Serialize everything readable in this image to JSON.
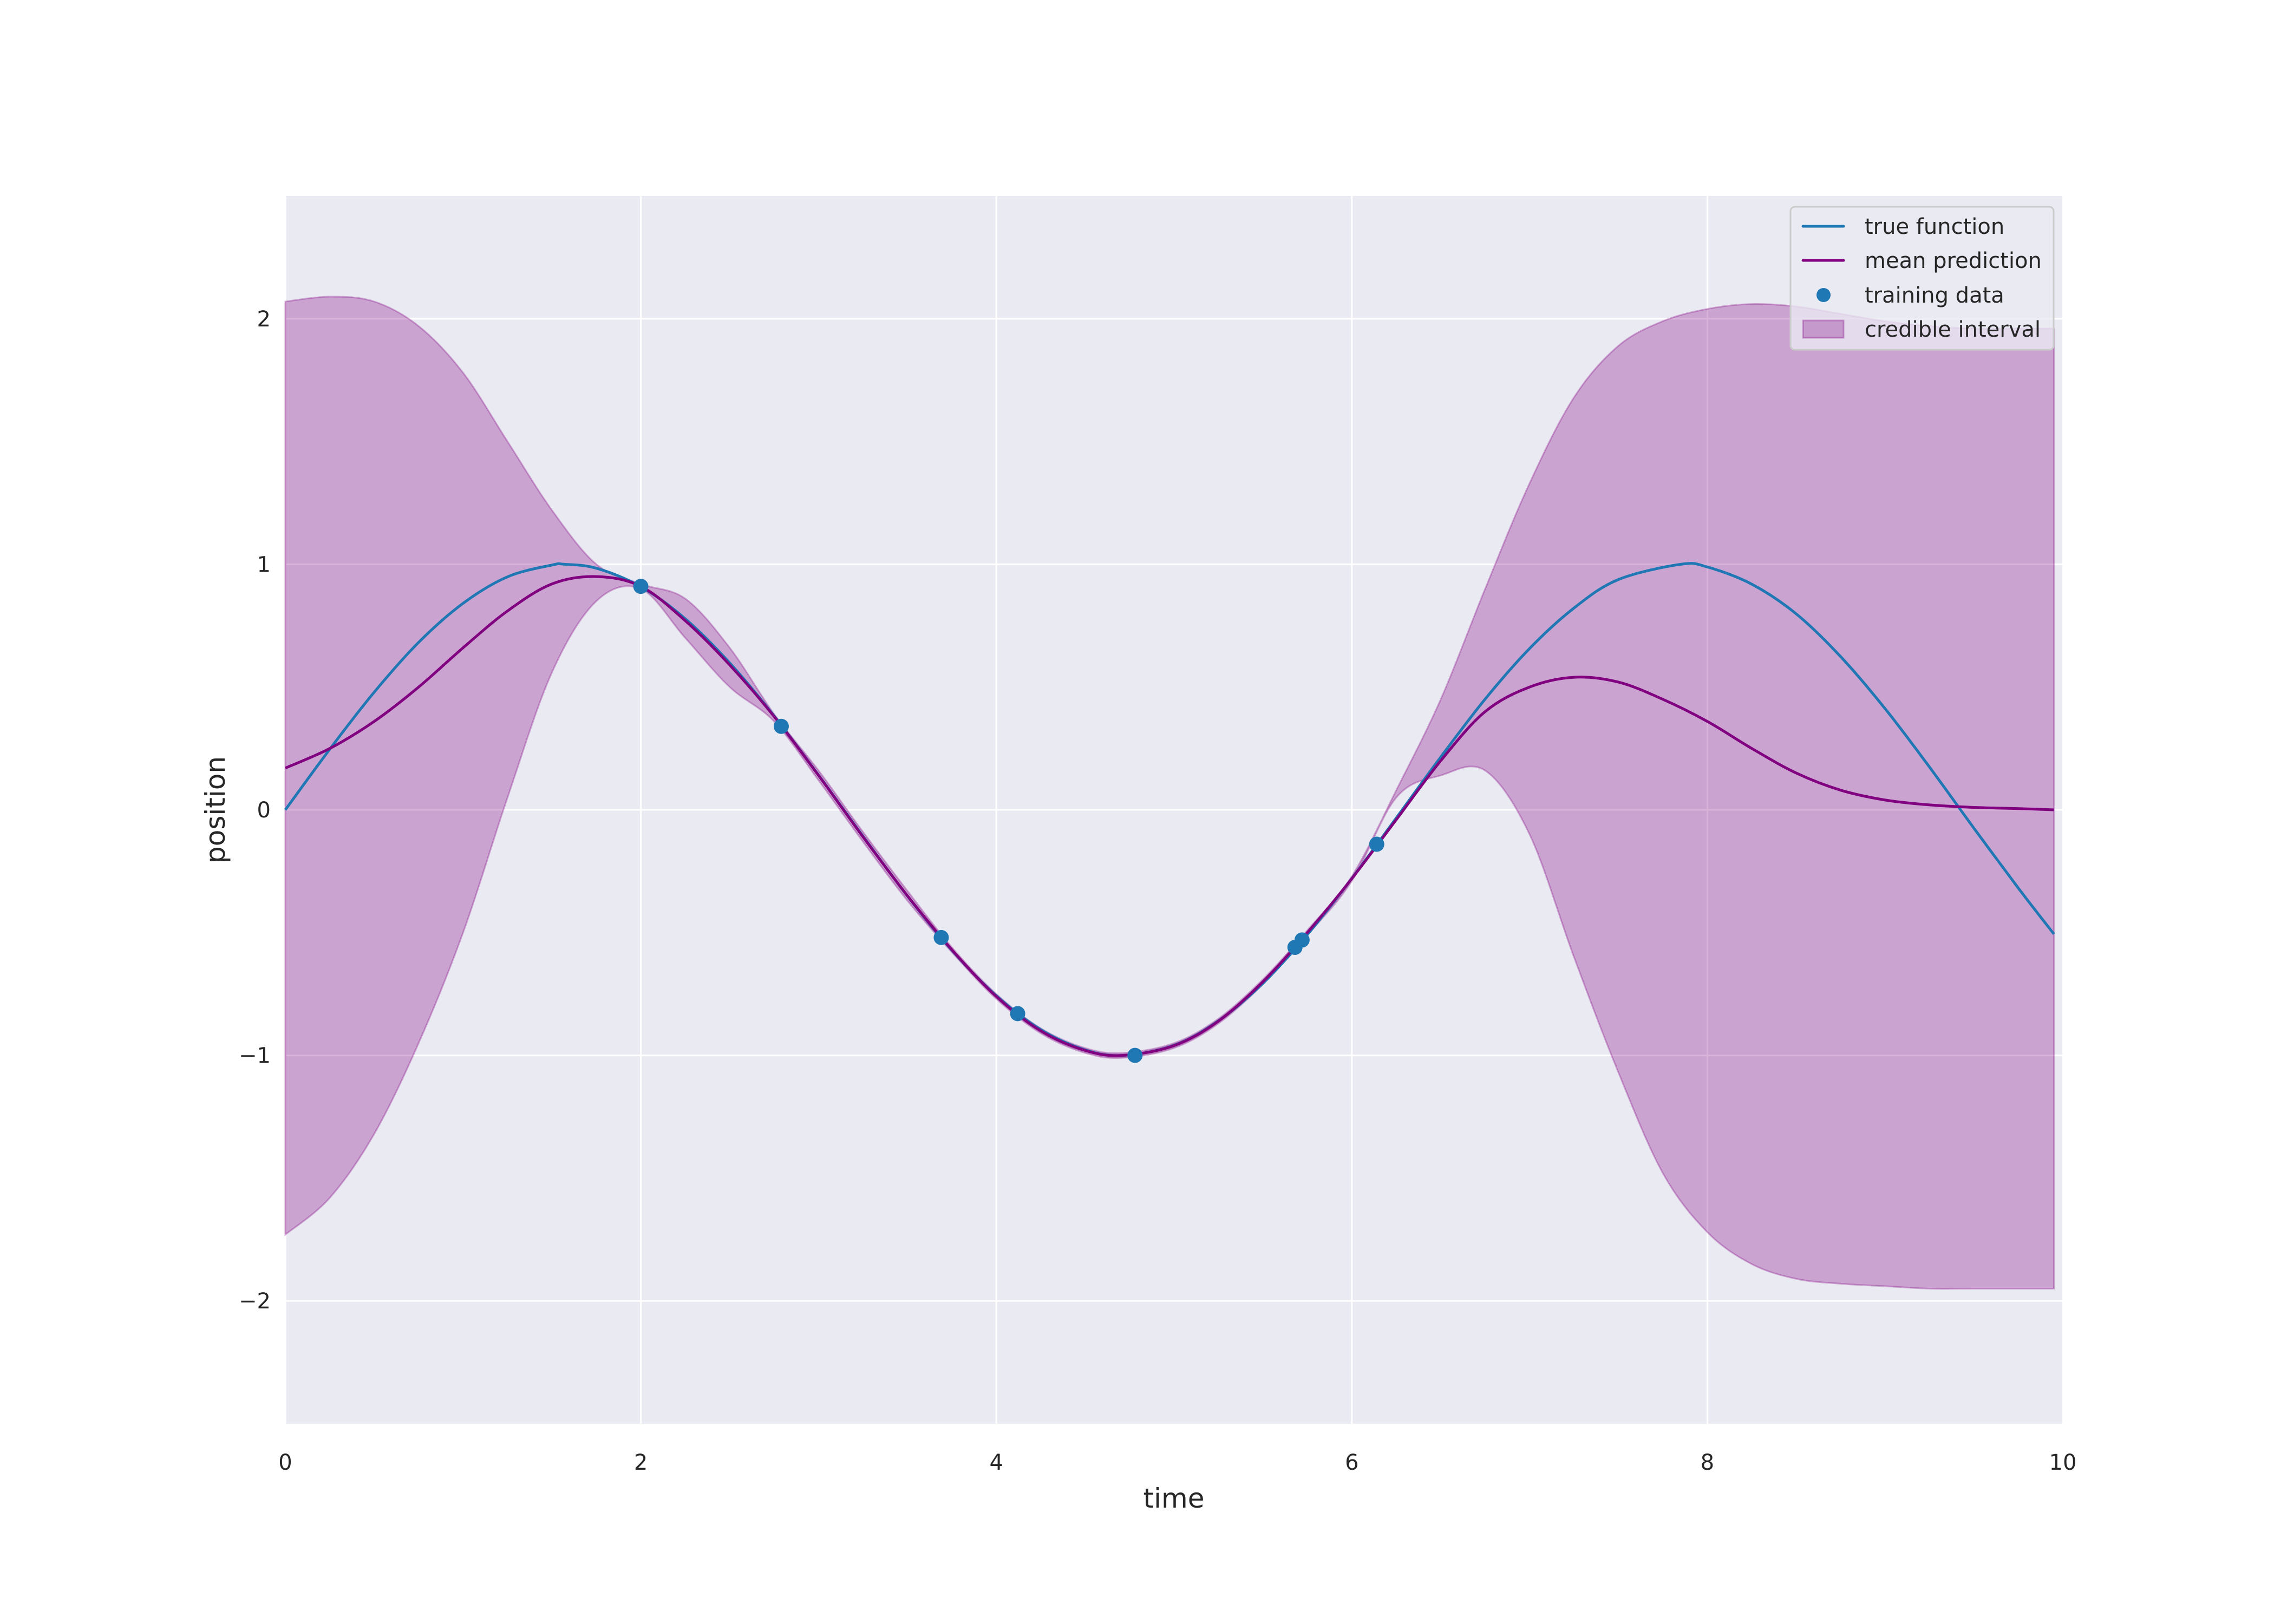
{
  "chart_data": {
    "type": "line",
    "title": "",
    "xlabel": "time",
    "ylabel": "position",
    "xlim": [
      0,
      10
    ],
    "ylim": [
      -2.5,
      2.5
    ],
    "grid": true,
    "legend_position": "upper right",
    "xticks": [
      0,
      2,
      4,
      6,
      8,
      10
    ],
    "xtick_labels": [
      "0",
      "2",
      "4",
      "6",
      "8",
      "10"
    ],
    "yticks": [
      -2,
      -1,
      0,
      1,
      2
    ],
    "ytick_labels": [
      "−2",
      "−1",
      "0",
      "1",
      "2"
    ],
    "legend": [
      {
        "label": "true function",
        "kind": "line",
        "color": "#1f77b4"
      },
      {
        "label": "mean prediction",
        "kind": "line",
        "color": "#800080"
      },
      {
        "label": "training data",
        "kind": "marker",
        "color": "#1f77b4"
      },
      {
        "label": "credible interval",
        "kind": "patch",
        "color": "#800080"
      }
    ],
    "series": [
      {
        "name": "true function",
        "color": "#1f77b4",
        "x": [
          0,
          0.25,
          0.5,
          0.75,
          1.0,
          1.25,
          1.5,
          1.57,
          1.75,
          2.0,
          2.25,
          2.5,
          2.75,
          3.0,
          3.25,
          3.5,
          3.75,
          4.0,
          4.25,
          4.5,
          4.71,
          5.0,
          5.25,
          5.5,
          5.75,
          6.0,
          6.25,
          6.5,
          6.75,
          7.0,
          7.25,
          7.5,
          7.85,
          8.0,
          8.25,
          8.5,
          8.75,
          9.0,
          9.25,
          9.5,
          9.75,
          9.95
        ],
        "y": [
          0,
          0.247,
          0.479,
          0.682,
          0.841,
          0.949,
          0.997,
          1.0,
          0.984,
          0.909,
          0.778,
          0.598,
          0.382,
          0.141,
          -0.108,
          -0.351,
          -0.572,
          -0.757,
          -0.895,
          -0.978,
          -1.0,
          -0.959,
          -0.859,
          -0.706,
          -0.508,
          -0.279,
          -0.033,
          0.215,
          0.451,
          0.657,
          0.822,
          0.938,
          1.0,
          0.989,
          0.919,
          0.798,
          0.624,
          0.412,
          0.174,
          -0.075,
          -0.319,
          -0.506
        ]
      },
      {
        "name": "mean prediction",
        "color": "#800080",
        "x": [
          0,
          0.25,
          0.5,
          0.75,
          1.0,
          1.25,
          1.5,
          1.75,
          2.0,
          2.25,
          2.5,
          2.75,
          3.0,
          3.25,
          3.5,
          3.75,
          4.0,
          4.25,
          4.5,
          4.71,
          5.0,
          5.25,
          5.5,
          5.75,
          6.0,
          6.25,
          6.5,
          6.75,
          7.0,
          7.25,
          7.5,
          7.75,
          8.0,
          8.25,
          8.5,
          8.75,
          9.0,
          9.25,
          9.5,
          9.75,
          9.95
        ],
        "y": [
          0.17,
          0.25,
          0.36,
          0.5,
          0.66,
          0.81,
          0.92,
          0.95,
          0.91,
          0.77,
          0.59,
          0.38,
          0.14,
          -0.11,
          -0.35,
          -0.57,
          -0.76,
          -0.9,
          -0.98,
          -1.0,
          -0.96,
          -0.86,
          -0.7,
          -0.5,
          -0.28,
          -0.04,
          0.2,
          0.4,
          0.5,
          0.54,
          0.52,
          0.45,
          0.36,
          0.25,
          0.15,
          0.08,
          0.04,
          0.02,
          0.01,
          0.005,
          0.0
        ]
      }
    ],
    "band": {
      "name": "credible interval",
      "color": "#800080",
      "opacity": 0.3,
      "x": [
        0,
        0.25,
        0.5,
        0.75,
        1.0,
        1.25,
        1.5,
        1.75,
        2.0,
        2.25,
        2.5,
        2.75,
        3.0,
        3.25,
        3.5,
        3.75,
        4.0,
        4.25,
        4.5,
        4.71,
        5.0,
        5.25,
        5.5,
        5.75,
        6.0,
        6.25,
        6.5,
        6.75,
        7.0,
        7.25,
        7.5,
        7.75,
        8.0,
        8.25,
        8.5,
        8.75,
        9.0,
        9.25,
        9.5,
        9.75,
        9.95
      ],
      "upper": [
        2.07,
        2.09,
        2.07,
        1.97,
        1.78,
        1.5,
        1.22,
        1.0,
        0.92,
        0.86,
        0.66,
        0.39,
        0.16,
        -0.09,
        -0.33,
        -0.56,
        -0.75,
        -0.89,
        -0.97,
        -0.99,
        -0.95,
        -0.85,
        -0.69,
        -0.49,
        -0.27,
        0.08,
        0.45,
        0.9,
        1.33,
        1.68,
        1.89,
        1.99,
        2.04,
        2.06,
        2.05,
        2.02,
        1.99,
        1.97,
        1.96,
        1.96,
        1.96
      ],
      "lower": [
        -1.73,
        -1.58,
        -1.32,
        -0.95,
        -0.5,
        0.05,
        0.56,
        0.85,
        0.9,
        0.7,
        0.5,
        0.36,
        0.12,
        -0.13,
        -0.37,
        -0.58,
        -0.77,
        -0.91,
        -0.99,
        -1.01,
        -0.97,
        -0.87,
        -0.71,
        -0.51,
        -0.29,
        0.05,
        0.14,
        0.16,
        -0.1,
        -0.6,
        -1.07,
        -1.48,
        -1.72,
        -1.85,
        -1.91,
        -1.93,
        -1.94,
        -1.95,
        -1.95,
        -1.95,
        -1.95
      ]
    },
    "scatter": {
      "name": "training data",
      "color": "#1f77b4",
      "x": [
        2.0,
        2.79,
        3.69,
        4.12,
        4.78,
        5.68,
        5.72,
        6.14
      ],
      "y": [
        0.91,
        0.34,
        -0.52,
        -0.83,
        -1.0,
        -0.56,
        -0.53,
        -0.14
      ]
    }
  },
  "colors": {
    "plot_background": "#eaeaf2",
    "grid": "#ffffff",
    "page_background": "#ffffff"
  }
}
